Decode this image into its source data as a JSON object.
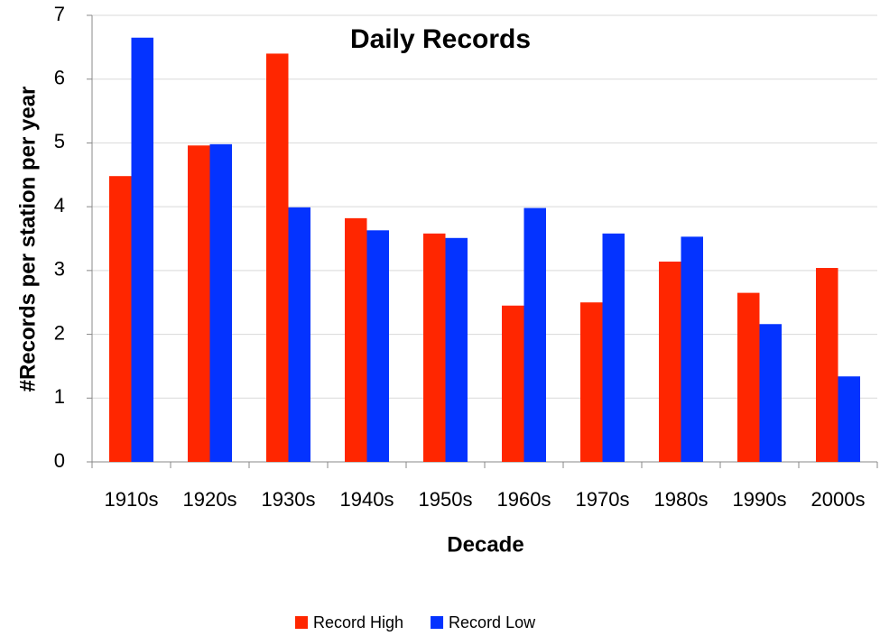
{
  "chart_data": {
    "type": "bar",
    "title": "Daily Records",
    "x_label": "Decade",
    "y_label": "#Records per station per year",
    "categories": [
      "1910s",
      "1920s",
      "1930s",
      "1940s",
      "1950s",
      "1960s",
      "1970s",
      "1980s",
      "1990s",
      "2000s"
    ],
    "series": [
      {
        "name": "Record High",
        "color": "#ff2600",
        "values": [
          4.48,
          4.96,
          6.4,
          3.82,
          3.58,
          2.45,
          2.5,
          3.14,
          2.65,
          3.04
        ]
      },
      {
        "name": "Record Low",
        "color": "#0433ff",
        "values": [
          6.65,
          4.98,
          3.99,
          3.63,
          3.51,
          3.98,
          3.58,
          3.53,
          2.16,
          1.34
        ]
      }
    ],
    "ylim": [
      0,
      7
    ],
    "yticks": [
      0,
      1,
      2,
      3,
      4,
      5,
      6,
      7
    ],
    "grid": true,
    "legend": "bottom"
  }
}
